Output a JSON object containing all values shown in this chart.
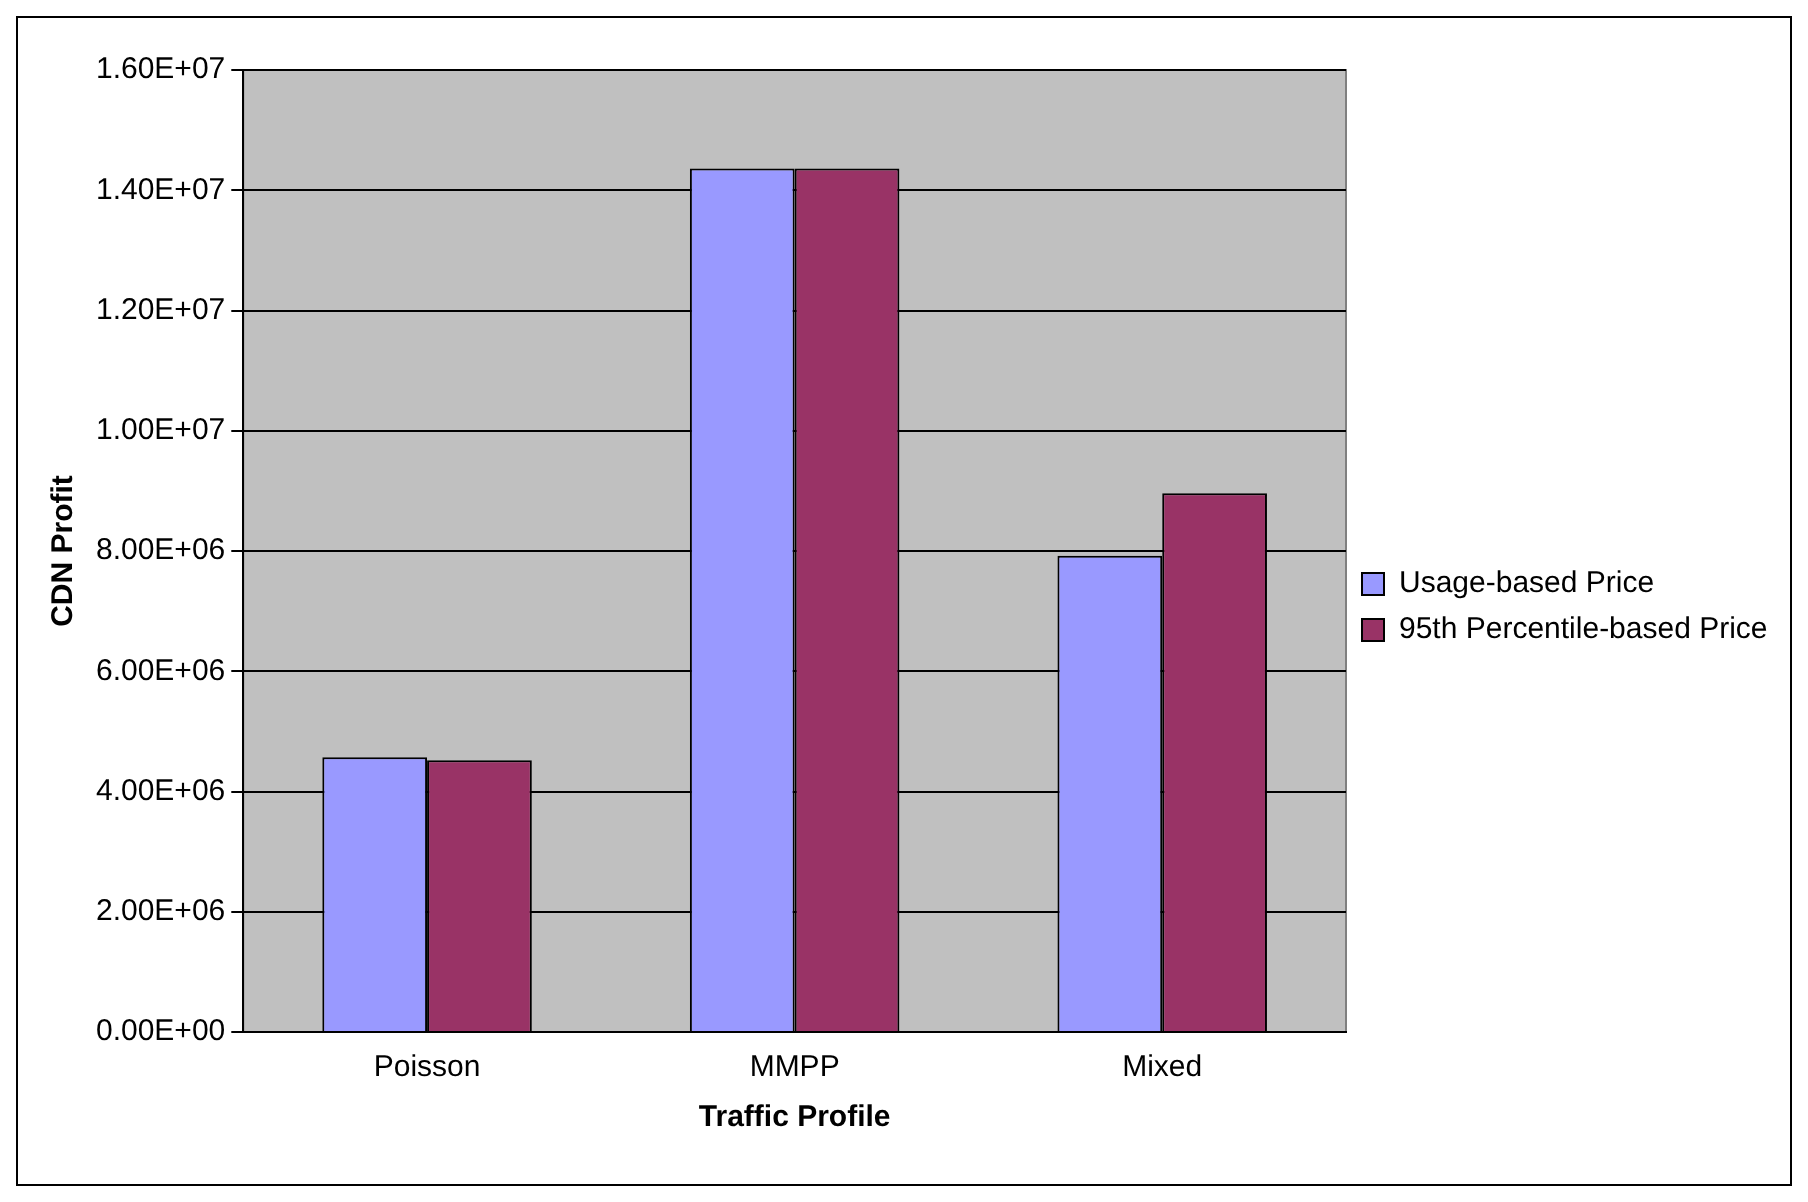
{
  "chart_data": {
    "type": "bar",
    "xlabel": "Traffic Profile",
    "ylabel": "CDN Profit",
    "categories": [
      "Poisson",
      "MMPP",
      "Mixed"
    ],
    "series": [
      {
        "name": "Usage-based Price",
        "color": "#9999ff",
        "values": [
          4570000,
          14360000,
          7920000
        ]
      },
      {
        "name": "95th Percentile-based Price",
        "color": "#993366",
        "values": [
          4520000,
          14360000,
          8960000
        ]
      }
    ],
    "ylim": [
      0,
      16000000
    ],
    "yticks": [
      {
        "value": 0,
        "label": "0.00E+00"
      },
      {
        "value": 2000000,
        "label": "2.00E+06"
      },
      {
        "value": 4000000,
        "label": "4.00E+06"
      },
      {
        "value": 6000000,
        "label": "6.00E+06"
      },
      {
        "value": 8000000,
        "label": "8.00E+06"
      },
      {
        "value": 10000000,
        "label": "1.00E+07"
      },
      {
        "value": 12000000,
        "label": "1.20E+07"
      },
      {
        "value": 14000000,
        "label": "1.40E+07"
      },
      {
        "value": 16000000,
        "label": "1.60E+07"
      }
    ],
    "grid": "y",
    "legend": "right"
  }
}
